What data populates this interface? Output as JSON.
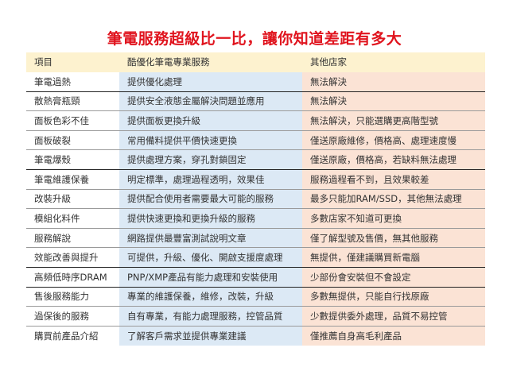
{
  "title": "筆電服務超級比一比，讓你知道差距有多大",
  "colors": {
    "title": "#e0141e",
    "header_bg": "#fdf2cf",
    "service_bg": "#dce9f5",
    "others_bg": "#fbe3d5"
  },
  "table": {
    "headers": [
      "項目",
      "酷優化筆電專業服務",
      "其他店家"
    ],
    "rows": [
      [
        "筆電過熱",
        "提供優化處理",
        "無法解決"
      ],
      [
        "散熱膏瓶頸",
        "提供安全液態金屬解決問題並應用",
        "無法解決"
      ],
      [
        "面板色彩不佳",
        "提供面板更換升級",
        "無法解決，只能選購更高階型號"
      ],
      [
        "面板破裂",
        "常用備料提供平價快速更換",
        "僅送原廠維修，價格高、處理速度慢"
      ],
      [
        "筆電爆殼",
        "提供處理方案，穿孔對鎖固定",
        "僅送原廠，價格高，若缺料無法處理"
      ],
      [
        "筆電維護保養",
        "明定標準，處理過程透明，效果佳",
        "服務過程看不到，且效果較差"
      ],
      [
        "改裝升級",
        "提供配合使用者需要最大可能的服務",
        "最多只能加RAM/SSD，其他無法處理"
      ],
      [
        "模組化料件",
        "提供快速更換和更換升級的服務",
        "多數店家不知道可更換"
      ],
      [
        "服務解說",
        "網路提供最豐富測試說明文章",
        "僅了解型號及售價，無其他服務"
      ],
      [
        "效能改善與提升",
        "可提供，升級、優化、開啟支援度處理",
        "無提供，僅建議購買新電腦"
      ],
      [
        "高頻低時序DRAM",
        "PNP/XMP產品有能力處理和安裝使用",
        "少部份會安裝但不會設定"
      ],
      [
        "售後服務能力",
        "專業的維護保養，維修，改裝，升級",
        "多數無提供，只能自行找原廠"
      ],
      [
        "過保後的服務",
        "自有專業，有能力處理服務，控管品質",
        "少數提供委外處理，品質不易控管"
      ],
      [
        "購買前產品介紹",
        "了解客戶需求並提供專業建議",
        "僅推薦自身高毛利產品"
      ]
    ]
  }
}
